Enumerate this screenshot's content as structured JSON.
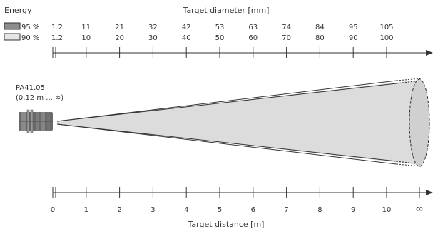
{
  "header": {
    "energy_label": "Energy",
    "top_axis_title": "Target diameter [mm]",
    "bottom_axis_title": "Target distance [m]"
  },
  "legend": [
    {
      "label": "95 %",
      "color": "#8c8c8c"
    },
    {
      "label": "90 %",
      "color": "#e6e6e6"
    }
  ],
  "sensor": {
    "model": "PA41.05",
    "range": "(0.12 m ... ∞)"
  },
  "chart_data": {
    "type": "diagram",
    "distance_ticks_m": [
      "0",
      "1",
      "2",
      "3",
      "4",
      "5",
      "6",
      "7",
      "8",
      "9",
      "10",
      "∞"
    ],
    "diameter_95_mm": [
      "1.2",
      "11",
      "21",
      "32",
      "42",
      "53",
      "63",
      "74",
      "84",
      "95",
      "105"
    ],
    "diameter_90_mm": [
      "1.2",
      "10",
      "20",
      "30",
      "40",
      "50",
      "60",
      "70",
      "80",
      "90",
      "100"
    ]
  },
  "colors": {
    "beam_fill": "#dcdcdc",
    "line": "#333333",
    "grid_dash": "#555555"
  }
}
